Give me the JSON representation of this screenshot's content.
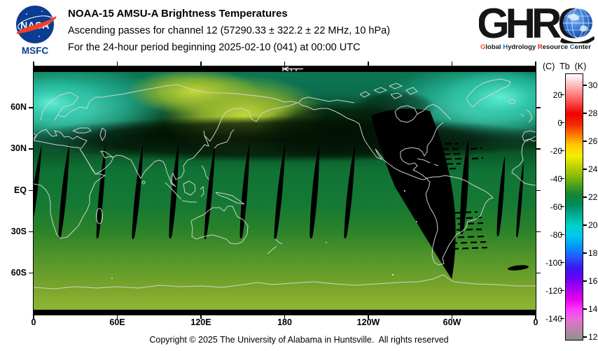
{
  "branding": {
    "nasa": {
      "wordmark": "NASA",
      "center": "MSFC",
      "circle_color": "#0b3d91",
      "swoosh_color": "#fc3d21"
    },
    "ghrc": {
      "acronym": "GHRC",
      "tagline": [
        {
          "initial": "G",
          "rest": "lobal",
          "color": "#e8501e"
        },
        {
          "initial": "H",
          "rest": "ydrology",
          "color": "#1f63b4"
        },
        {
          "initial": "R",
          "rest": "esource",
          "color": "#e02020"
        },
        {
          "initial": "C",
          "rest": "enter",
          "color": "#1f63b4"
        }
      ]
    }
  },
  "header": {
    "title": "NOAA-15 AMSU-A Brightness Temperatures",
    "line2": "Ascending passes for channel 12 (57290.33 ± 322.2 ± 22 MHz, 10 hPa)",
    "line3": "For the 24-hour period beginning 2025-02-10 (041) at 00:00 UTC"
  },
  "map": {
    "x_labels": [
      "0",
      "60E",
      "120E",
      "180",
      "120W",
      "60W",
      "0"
    ],
    "y_labels": [
      "60N",
      "30N",
      "EQ",
      "30S",
      "60S"
    ],
    "no_data_color": "#000000",
    "coastline_color": "#d6d6d6"
  },
  "colorbar": {
    "header_c": "(C)",
    "header_tb": "Tb",
    "header_k": "(K)",
    "kelvin_ticks": [
      300,
      280,
      260,
      240,
      220,
      200,
      180,
      160,
      140,
      120
    ],
    "celsius_ticks": [
      20,
      0,
      -20,
      -40,
      -60,
      -80,
      -100,
      -120,
      -140
    ]
  },
  "footer": {
    "copyright": "Copyright © 2025 The University of Alabama in Huntsville.  All rights reserved"
  },
  "chart_data": {
    "type": "heatmap",
    "title": "NOAA-15 AMSU-A Brightness Temperatures",
    "subtitle": "Ascending passes for channel 12 (57290.33 ± 322.2 ± 22 MHz, 10 hPa)",
    "period": "For the 24-hour period beginning 2025-02-10 (041) at 00:00 UTC",
    "projection": "equirectangular world map, longitude 0E eastward to 0E, latitude 90N to 90S",
    "x_axis": {
      "ticks": [
        "0",
        "60E",
        "120E",
        "180",
        "120W",
        "60W",
        "0"
      ],
      "range_deg_east": [
        0,
        360
      ]
    },
    "y_axis": {
      "ticks": [
        "60N",
        "30N",
        "EQ",
        "30S",
        "60S"
      ],
      "range_deg_lat": [
        90,
        -90
      ]
    },
    "colorbar": {
      "quantity": "Tb",
      "units": [
        "C",
        "K"
      ],
      "kelvin_range": [
        120,
        310
      ],
      "kelvin_ticks": [
        300,
        280,
        260,
        240,
        220,
        200,
        180,
        160,
        140,
        120
      ],
      "celsius_ticks": [
        20,
        0,
        -20,
        -40,
        -60,
        -80,
        -100,
        -120,
        -140
      ],
      "gradient_stops": [
        {
          "k": 310,
          "color": "#ffffff"
        },
        {
          "k": 300,
          "color": "#ffb6b6"
        },
        {
          "k": 280,
          "color": "#ef0000"
        },
        {
          "k": 265,
          "color": "#ff7800"
        },
        {
          "k": 252,
          "color": "#f5f000"
        },
        {
          "k": 240,
          "color": "#a8c806"
        },
        {
          "k": 228,
          "color": "#3f9c1e"
        },
        {
          "k": 215,
          "color": "#008c5c"
        },
        {
          "k": 200,
          "color": "#00d2c8"
        },
        {
          "k": 185,
          "color": "#0096f8"
        },
        {
          "k": 170,
          "color": "#3818f0"
        },
        {
          "k": 155,
          "color": "#a800f0"
        },
        {
          "k": 140,
          "color": "#ff3cff"
        },
        {
          "k": 128,
          "color": "#cc7cbc"
        },
        {
          "k": 120,
          "color": "#909090"
        }
      ]
    },
    "observed_features": [
      {
        "region": "Arctic North Atlantic / NW Eurasia and NE Canada-Greenland seas",
        "approx_tb_k": "200-212",
        "appearance": "bright cyan lobes"
      },
      {
        "region": "NE Siberia / Sea of Okhotsk warm anomaly",
        "approx_tb_k": "242-250",
        "appearance": "yellow-green blob"
      },
      {
        "region": "Mid-latitude band near 40-55N, full width",
        "approx_tb_k": "212-220",
        "appearance": "very dark green band"
      },
      {
        "region": "Tropics 30N-30S",
        "approx_tb_k": "225-232",
        "appearance": "medium green"
      },
      {
        "region": "Southern hemisphere toward 70S",
        "approx_tb_k": "238-248",
        "appearance": "brightening yellow-green"
      },
      {
        "region": "Between-swath diagonal gaps, ~25N to ~35S, every ~26 deg longitude",
        "value": "no data",
        "appearance": "narrow black slivers"
      },
      {
        "region": "Americas / East Pacific ~105W-55W",
        "value": "no data (missing passes)",
        "appearance": "large black swath with dashed scan-line edges"
      },
      {
        "region": "Poleward of ~82N and ~82S",
        "value": "no data",
        "appearance": "black strips at top and bottom"
      },
      {
        "annotation": "small white left-pointing arrow in top no-data strip near 180 longitude"
      }
    ]
  }
}
